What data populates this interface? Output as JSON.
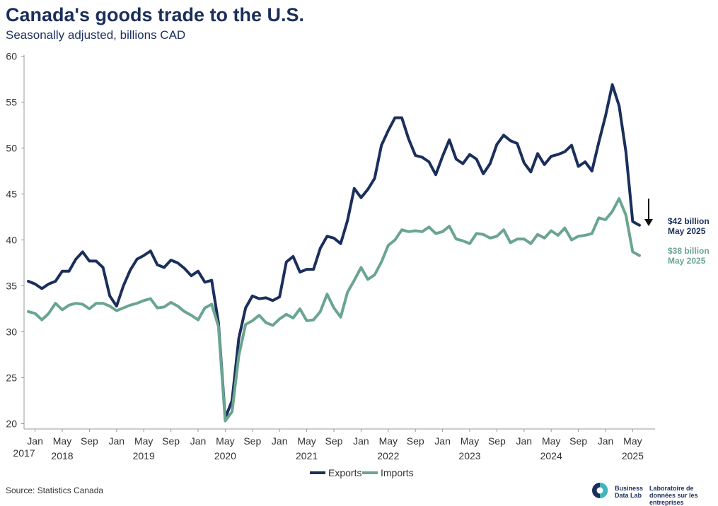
{
  "title": "Canada's goods trade to the U.S.",
  "subtitle": "Seasonally adjusted, billions CAD",
  "source": "Source: Statistics Canada",
  "logo": {
    "text_en": "Business Data Lab",
    "text_fr": "Laboratoire de données sur les entreprises"
  },
  "colors": {
    "exports": "#1b2f5c",
    "imports": "#6aa58f",
    "arrow": "#111111"
  },
  "annotations": {
    "exports_value": "$42 billion",
    "exports_date": "May 2025",
    "imports_value": "$38 billion",
    "imports_date": "May 2025"
  },
  "chart_data": {
    "type": "line",
    "title": "Canada's goods trade to the U.S.",
    "ylabel": "",
    "xlabel": "",
    "ylim": [
      20,
      60
    ],
    "yticks": [
      20,
      25,
      30,
      35,
      40,
      45,
      50,
      55,
      60
    ],
    "x_start": "2017-01",
    "month_ticks": [
      {
        "label": "Jan",
        "year": "2017",
        "i": 0
      },
      {
        "label": "Jan",
        "year": "",
        "i": 1
      },
      {
        "label": "May",
        "year": "2018",
        "i": 5
      },
      {
        "label": "Sep",
        "year": "",
        "i": 9
      },
      {
        "label": "Jan",
        "year": "",
        "i": 13
      },
      {
        "label": "May",
        "year": "2019",
        "i": 17
      },
      {
        "label": "Sep",
        "year": "",
        "i": 21
      },
      {
        "label": "Jan",
        "year": "",
        "i": 25
      },
      {
        "label": "May",
        "year": "2020",
        "i": 29
      },
      {
        "label": "Sep",
        "year": "",
        "i": 33
      },
      {
        "label": "Jan",
        "year": "",
        "i": 37
      },
      {
        "label": "May",
        "year": "2021",
        "i": 41
      },
      {
        "label": "Sep",
        "year": "",
        "i": 45
      },
      {
        "label": "Jan",
        "year": "",
        "i": 49
      },
      {
        "label": "May",
        "year": "2022",
        "i": 53
      },
      {
        "label": "Sep",
        "year": "",
        "i": 57
      },
      {
        "label": "Jan",
        "year": "",
        "i": 61
      },
      {
        "label": "May",
        "year": "2023",
        "i": 65
      },
      {
        "label": "Sep",
        "year": "",
        "i": 69
      },
      {
        "label": "Jan",
        "year": "",
        "i": 73
      },
      {
        "label": "May",
        "year": "2024",
        "i": 77
      },
      {
        "label": "Sep",
        "year": "",
        "i": 81
      },
      {
        "label": "Jan",
        "year": "",
        "i": 85
      },
      {
        "label": "May",
        "year": "2025",
        "i": 89
      }
    ],
    "series": [
      {
        "name": "Exports",
        "color": "#1b2f5c",
        "values": [
          35.5,
          35.2,
          34.7,
          35.2,
          35.5,
          36.6,
          36.6,
          37.9,
          38.7,
          37.7,
          37.7,
          37.0,
          33.9,
          32.8,
          35.0,
          36.7,
          37.9,
          38.3,
          38.8,
          37.3,
          37.0,
          37.8,
          37.5,
          36.9,
          36.1,
          36.6,
          35.4,
          35.6,
          31.0,
          20.6,
          22.5,
          29.3,
          32.6,
          33.9,
          33.6,
          33.7,
          33.4,
          33.8,
          37.6,
          38.2,
          36.5,
          36.8,
          36.8,
          39.1,
          40.4,
          40.2,
          39.6,
          42.1,
          45.6,
          44.6,
          45.5,
          46.7,
          50.3,
          51.9,
          53.3,
          53.3,
          51.0,
          49.2,
          49.0,
          48.5,
          47.1,
          49.1,
          50.9,
          48.8,
          48.3,
          49.3,
          48.8,
          47.2,
          48.3,
          50.4,
          51.4,
          50.8,
          50.5,
          48.4,
          47.4,
          49.4,
          48.2,
          49.1,
          49.3,
          49.6,
          50.3,
          48.0,
          48.5,
          47.5,
          50.6,
          53.5,
          56.9,
          54.6,
          49.6,
          42.0,
          41.6
        ]
      },
      {
        "name": "Imports",
        "color": "#6aa58f",
        "values": [
          32.2,
          32.0,
          31.3,
          32.0,
          33.1,
          32.4,
          32.9,
          33.1,
          33.0,
          32.5,
          33.1,
          33.1,
          32.8,
          32.3,
          32.6,
          32.9,
          33.1,
          33.4,
          33.6,
          32.6,
          32.7,
          33.2,
          32.8,
          32.2,
          31.8,
          31.3,
          32.6,
          33.0,
          30.6,
          20.3,
          21.3,
          27.4,
          30.8,
          31.2,
          31.8,
          31.0,
          30.7,
          31.4,
          31.9,
          31.5,
          32.5,
          31.2,
          31.3,
          32.2,
          34.1,
          32.6,
          31.6,
          34.3,
          35.6,
          37.0,
          35.7,
          36.2,
          37.6,
          39.4,
          40.0,
          41.1,
          40.9,
          41.0,
          40.9,
          41.4,
          40.7,
          40.9,
          41.5,
          40.1,
          39.9,
          39.6,
          40.7,
          40.6,
          40.2,
          40.4,
          41.1,
          39.7,
          40.1,
          40.1,
          39.6,
          40.6,
          40.2,
          41.0,
          40.5,
          41.3,
          40.0,
          40.4,
          40.5,
          40.7,
          42.4,
          42.2,
          43.1,
          44.5,
          42.7,
          38.7,
          38.3
        ]
      }
    ],
    "legend": {
      "position": "bottom-center",
      "entries": [
        "Exports",
        "Imports"
      ]
    },
    "grid": false
  }
}
